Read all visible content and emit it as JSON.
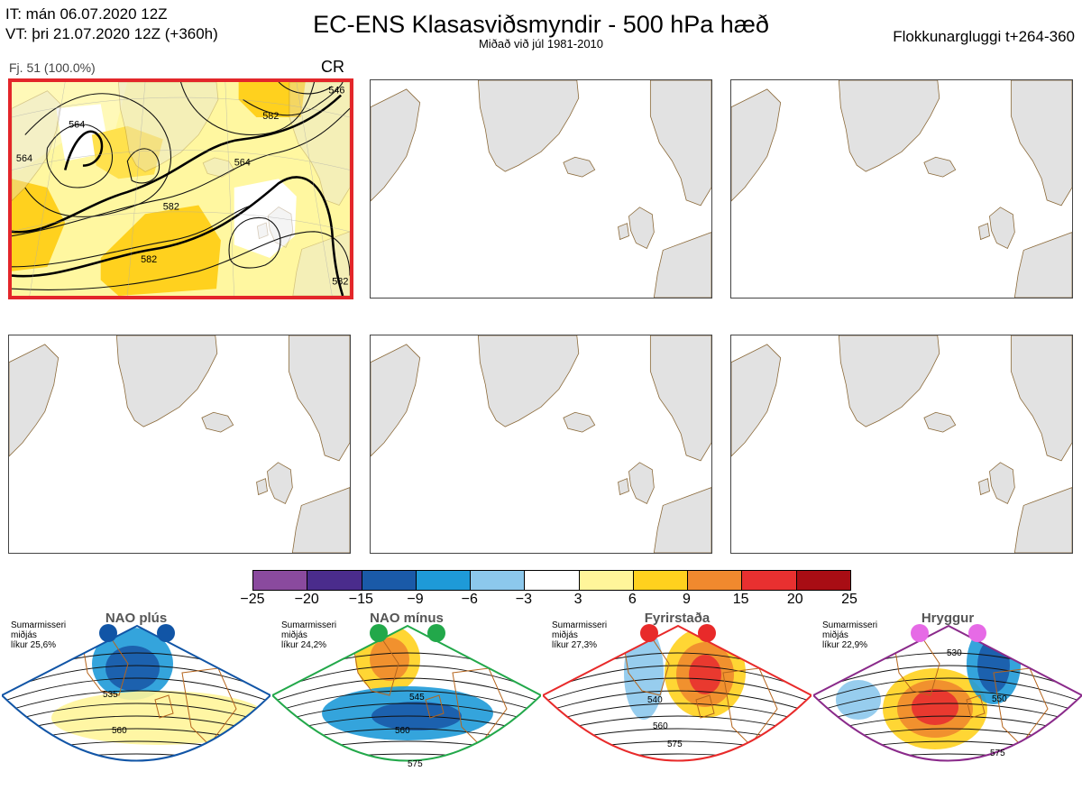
{
  "header": {
    "left_line1": "IT: mán 06.07.2020 12Z",
    "left_line2": "VT: þri 21.07.2020 12Z  (+360h)",
    "title": "EC-ENS Klasasviðsmyndir - 500 hPa hæð",
    "subtitle": "Miðað við júl 1981-2010",
    "right": "Flokkunargluggi t+264-360"
  },
  "cluster": {
    "label": "Fj. 51 (100.0%)",
    "tag": "CR",
    "contour_labels": [
      "564",
      "582",
      "564",
      "582",
      "564",
      "582",
      "582",
      "546"
    ]
  },
  "colorbar": {
    "ticks": [
      "−25",
      "−20",
      "−15",
      "−9",
      "−6",
      "−3",
      "3",
      "6",
      "9",
      "15",
      "20",
      "25"
    ],
    "colors": [
      "#8a4a9e",
      "#4a2c8c",
      "#1a5aa8",
      "#1e9ad8",
      "#8cc8ec",
      "#ffffff",
      "#fff59a",
      "#ffd11e",
      "#f0892e",
      "#e83030",
      "#a80d14"
    ]
  },
  "regimes": [
    {
      "name": "NAO plús",
      "line1": "Sumarmisseri",
      "line2": "miðjás",
      "line3": "líkur 25,6%",
      "labels": [
        "535",
        "560"
      ],
      "dot_color": "#1155a6",
      "border": "#1155a6"
    },
    {
      "name": "NAO mínus",
      "line1": "Sumarmisseri",
      "line2": "miðjás",
      "line3": "líkur 24,2%",
      "labels": [
        "545",
        "560",
        "575"
      ],
      "dot_color": "#22a84a",
      "border": "#22a84a"
    },
    {
      "name": "Fyrirstaða",
      "line1": "Sumarmisseri",
      "line2": "miðjás",
      "line3": "líkur 27,3%",
      "labels": [
        "540",
        "560",
        "575"
      ],
      "dot_color": "#e82a2a",
      "border": "#e82a2a"
    },
    {
      "name": "Hryggur",
      "line1": "Sumarmisseri",
      "line2": "miðjás",
      "line3": "líkur 22,9%",
      "labels": [
        "530",
        "550",
        "575"
      ],
      "dot_color": "#e66ae6",
      "border": "#8a2a8a"
    }
  ]
}
